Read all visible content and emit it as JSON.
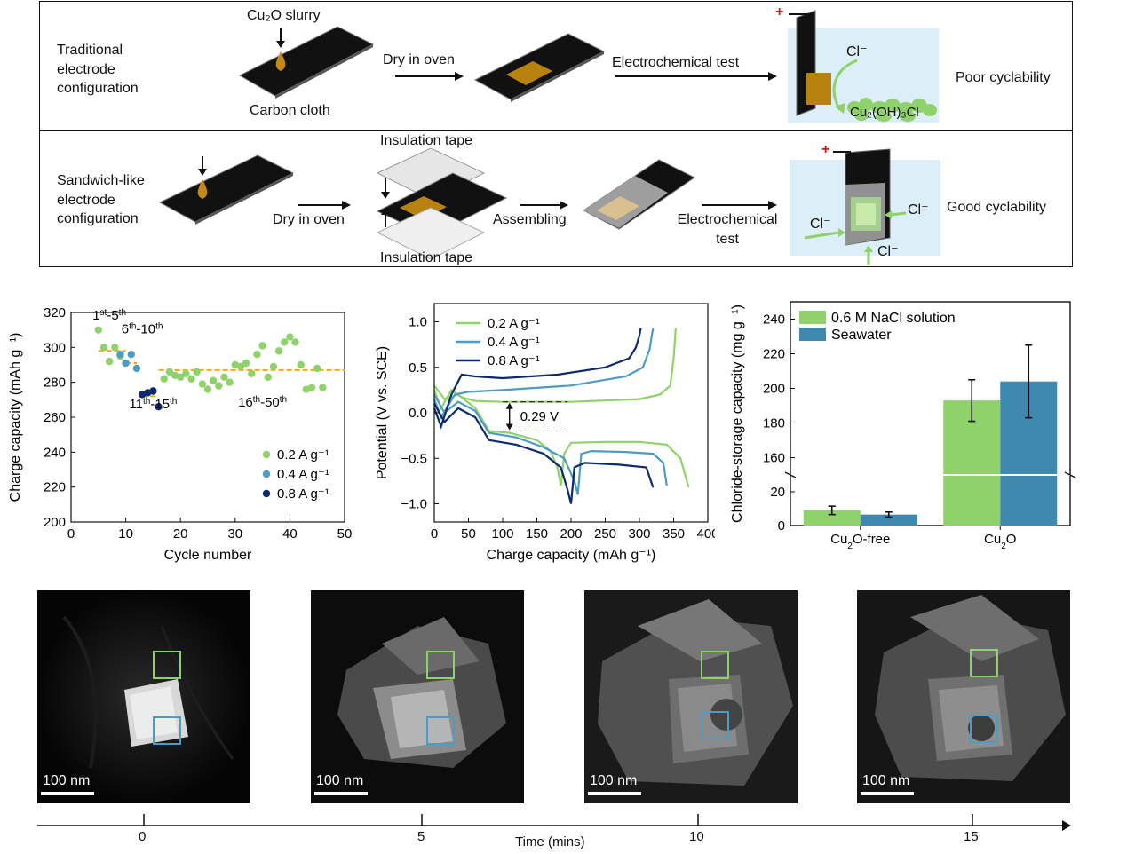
{
  "schematic": {
    "traditional": {
      "label": "Traditional electrode configuration",
      "label_lines": [
        "Traditional",
        "electrode",
        "configuration"
      ],
      "slurry": "Cu₂O slurry",
      "cloth": "Carbon cloth",
      "step1": "Dry in oven",
      "step2": "Electrochemical test",
      "ion": "Cl⁻",
      "product": "Cu₂(OH)₃Cl",
      "result": "Poor cyclability",
      "plus": "+"
    },
    "sandwich": {
      "label_lines": [
        "Sandwich-like",
        "electrode",
        "configuration"
      ],
      "step1": "Dry in oven",
      "tape_top": "Insulation tape",
      "tape_bottom": "Insulation tape",
      "step2": "Assembling",
      "step3_lines": [
        "Electrochemical",
        "test"
      ],
      "ion": "Cl⁻",
      "result": "Good cyclability",
      "plus": "+"
    }
  },
  "chart_data": [
    {
      "type": "scatter",
      "xlabel": "Cycle number",
      "ylabel": "Charge capacity (mAh g⁻¹)",
      "xlim": [
        0,
        50
      ],
      "ylim": [
        200,
        320
      ],
      "xticks": [
        0,
        10,
        20,
        30,
        40,
        50
      ],
      "yticks": [
        200,
        220,
        240,
        260,
        280,
        300,
        320
      ],
      "legend": "bottom-right",
      "annotations": [
        {
          "text": "1st-5th",
          "x": 7,
          "y": 316
        },
        {
          "text": "6th-10th",
          "x": 13,
          "y": 308
        },
        {
          "text": "11th-15th",
          "x": 15,
          "y": 265
        },
        {
          "text": "16th-50th",
          "x": 35,
          "y": 266
        }
      ],
      "guides": [
        {
          "series": "0.2 A g⁻¹",
          "x": [
            5,
            10
          ],
          "y": 298
        },
        {
          "series": "0.4 A g⁻¹",
          "x": [
            10,
            12
          ],
          "y": 291
        },
        {
          "series": "0.8 A g⁻¹",
          "x": [
            13,
            16
          ],
          "y": 272
        },
        {
          "series": "0.2 A g⁻¹",
          "x": [
            16,
            50
          ],
          "y": 287
        }
      ],
      "series": [
        {
          "name": "0.2 A g⁻¹",
          "color": "#8fd16b",
          "x": [
            5,
            6,
            7,
            8,
            9,
            17,
            18,
            19,
            20,
            21,
            22,
            23,
            24,
            25,
            26,
            27,
            28,
            29,
            30,
            31,
            32,
            33,
            34,
            35,
            36,
            37,
            38,
            39,
            40,
            41,
            42,
            43,
            44,
            45,
            46
          ],
          "y": [
            310,
            300,
            292,
            300,
            295,
            282,
            286,
            284,
            283,
            285,
            282,
            286,
            279,
            276,
            281,
            278,
            283,
            280,
            290,
            289,
            291,
            285,
            296,
            301,
            283,
            289,
            298,
            303,
            306,
            303,
            290,
            276,
            277,
            288,
            277
          ]
        },
        {
          "name": "0.4 A g⁻¹",
          "color": "#4e9cc4",
          "x": [
            9,
            10,
            11,
            12
          ],
          "y": [
            296,
            291,
            296,
            288
          ]
        },
        {
          "name": "0.8 A g⁻¹",
          "color": "#0d2a6e",
          "x": [
            13,
            14,
            15,
            16
          ],
          "y": [
            273,
            274,
            275,
            266
          ]
        }
      ]
    },
    {
      "type": "line",
      "xlabel": "Charge capacity (mAh g⁻¹)",
      "ylabel": "Potential (V vs. SCE)",
      "xlim": [
        0,
        400
      ],
      "ylim": [
        -1.2,
        1.2
      ],
      "xticks": [
        0,
        50,
        100,
        150,
        200,
        250,
        300,
        350,
        400
      ],
      "yticks": [
        -1.0,
        -0.5,
        0.0,
        0.5,
        1.0
      ],
      "legend": "top-left",
      "annotation": "0.29 V",
      "series": [
        {
          "name": "0.2 A g⁻¹",
          "color": "#8fd16b",
          "charge": {
            "x": [
              0,
              10,
              25,
              40,
              60,
              100,
              200,
              300,
              330,
              345,
              350,
              352,
              353
            ],
            "y": [
              0.25,
              0.05,
              0.25,
              0.17,
              0.13,
              0.12,
              0.12,
              0.15,
              0.2,
              0.3,
              0.6,
              0.8,
              0.93
            ]
          },
          "discharge": {
            "x": [
              0,
              15,
              35,
              60,
              80,
              110,
              150,
              170,
              180,
              185,
              190,
              200,
              250,
              300,
              340,
              360,
              372
            ],
            "y": [
              0.3,
              0.15,
              0.2,
              0.05,
              -0.2,
              -0.22,
              -0.3,
              -0.42,
              -0.6,
              -0.8,
              -0.45,
              -0.33,
              -0.32,
              -0.32,
              -0.35,
              -0.5,
              -0.82
            ]
          }
        },
        {
          "name": "0.4 A g⁻¹",
          "color": "#4e9cc4",
          "charge": {
            "x": [
              0,
              10,
              30,
              50,
              100,
              200,
              280,
              305,
              315,
              318,
              320
            ],
            "y": [
              0.15,
              -0.05,
              0.2,
              0.23,
              0.25,
              0.3,
              0.4,
              0.5,
              0.7,
              0.85,
              0.93
            ]
          },
          "discharge": {
            "x": [
              0,
              15,
              35,
              60,
              80,
              120,
              160,
              190,
              205,
              210,
              215,
              230,
              280,
              320,
              335,
              340
            ],
            "y": [
              0.2,
              0.0,
              0.12,
              0.02,
              -0.22,
              -0.27,
              -0.38,
              -0.5,
              -0.75,
              -0.9,
              -0.45,
              -0.42,
              -0.43,
              -0.45,
              -0.55,
              -0.8
            ]
          }
        },
        {
          "name": "0.8 A g⁻¹",
          "color": "#0d2a6e",
          "charge": {
            "x": [
              0,
              10,
              25,
              40,
              60,
              100,
              180,
              250,
              285,
              295,
              300,
              302
            ],
            "y": [
              0.05,
              -0.15,
              0.2,
              0.42,
              0.4,
              0.38,
              0.42,
              0.5,
              0.6,
              0.72,
              0.85,
              0.93
            ]
          },
          "discharge": {
            "x": [
              0,
              15,
              35,
              60,
              80,
              120,
              160,
              185,
              195,
              200,
              205,
              220,
              270,
              310,
              320
            ],
            "y": [
              0.1,
              -0.1,
              0.05,
              -0.05,
              -0.3,
              -0.35,
              -0.45,
              -0.6,
              -0.85,
              -1.0,
              -0.6,
              -0.55,
              -0.57,
              -0.6,
              -0.82
            ]
          }
        }
      ]
    },
    {
      "type": "bar",
      "ylabel": "Chloride-storage capacity (mg g⁻¹)",
      "categories": [
        "Cu₂O-free",
        "Cu₂O"
      ],
      "broken_axis": true,
      "yticks_lower": [
        0,
        20
      ],
      "yticks_upper": [
        160,
        180,
        200,
        220,
        240
      ],
      "legend": "top-left",
      "series": [
        {
          "name": "0.6 M NaCl solution",
          "color": "#8fd16b",
          "values": [
            9,
            193
          ],
          "errors": [
            2.5,
            12
          ]
        },
        {
          "name": "Seawater",
          "color": "#3f89b1",
          "values": [
            6.5,
            204
          ],
          "errors": [
            1.5,
            21
          ]
        }
      ]
    }
  ],
  "tem": {
    "scalebar": "100 nm",
    "frames": [
      {
        "time": "0"
      },
      {
        "time": "5"
      },
      {
        "time": "10"
      },
      {
        "time": "15"
      }
    ],
    "time_axis_label": "Time (mins)"
  }
}
